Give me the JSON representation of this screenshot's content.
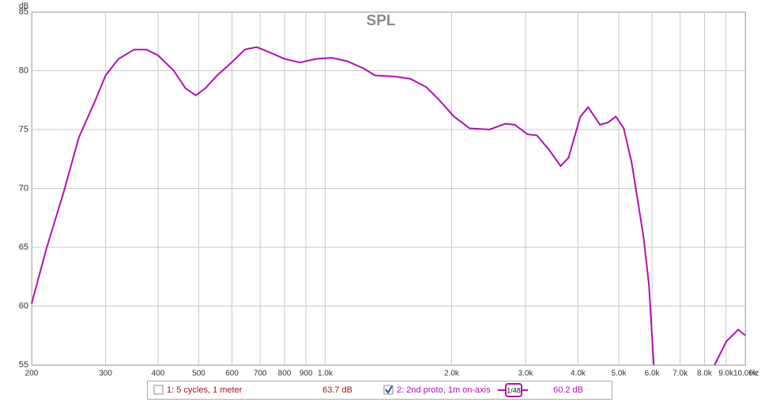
{
  "chart_data": {
    "type": "line",
    "title": "SPL",
    "y_unit": "dB",
    "x_unit": "Hz",
    "x_scale": "log",
    "grid": true,
    "xlim": [
      200,
      10000
    ],
    "ylim": [
      55,
      85
    ],
    "xticks": [
      200,
      300,
      400,
      500,
      600,
      700,
      800,
      900,
      {
        "value": 1000,
        "label": "1.0k"
      },
      {
        "value": 2000,
        "label": "2.0k"
      },
      {
        "value": 3000,
        "label": "3.0k"
      },
      {
        "value": 4000,
        "label": "4.0k"
      },
      {
        "value": 5000,
        "label": "5.0k"
      },
      {
        "value": 6000,
        "label": "6.0k"
      },
      {
        "value": 7000,
        "label": "7.0k"
      },
      {
        "value": 8000,
        "label": "8.0k"
      },
      {
        "value": 9000,
        "label": "9.0k"
      },
      {
        "value": 10000,
        "label": "10.00k"
      }
    ],
    "yticks": [
      55,
      60,
      65,
      70,
      75,
      80,
      85
    ],
    "x": [
      200,
      217,
      238,
      259,
      283,
      300,
      322,
      351,
      375,
      400,
      436,
      465,
      492,
      518,
      553,
      603,
      644,
      687,
      733,
      800,
      871,
      950,
      1036,
      1130,
      1232,
      1315,
      1464,
      1597,
      1742,
      1858,
      2026,
      2209,
      2461,
      2685,
      2828,
      3031,
      3192,
      3407,
      3635,
      3796,
      4050,
      4229,
      4513,
      4713,
      4921,
      5139,
      5366,
      5725,
      5901,
      6057,
      null,
      8455,
      9022,
      9626,
      10000
    ],
    "series": [
      {
        "name": "2: 2nd proto, 1m on-axis",
        "color": "#b010b0",
        "checked": true,
        "smoothing": "1/48",
        "readout": "60.2 dB",
        "values": [
          60.2,
          64.9,
          69.6,
          74.3,
          77.4,
          79.6,
          81.0,
          81.8,
          81.8,
          81.3,
          80.0,
          78.5,
          77.9,
          78.5,
          79.6,
          80.8,
          81.8,
          82.0,
          81.6,
          81.0,
          80.7,
          81.0,
          81.1,
          80.8,
          80.2,
          79.6,
          79.5,
          79.3,
          78.6,
          77.6,
          76.1,
          75.1,
          75.0,
          75.5,
          75.4,
          74.6,
          74.5,
          73.3,
          71.9,
          72.6,
          76.1,
          76.9,
          75.4,
          75.6,
          76.1,
          75.1,
          72.2,
          65.9,
          61.8,
          55.0,
          null,
          55.0,
          57.0,
          58.0,
          57.5
        ]
      }
    ],
    "hidden_series": [
      {
        "name": "1: 5 cycles, 1 meter",
        "color": "#a01818",
        "checked": false,
        "readout": "63.7 dB"
      }
    ]
  }
}
